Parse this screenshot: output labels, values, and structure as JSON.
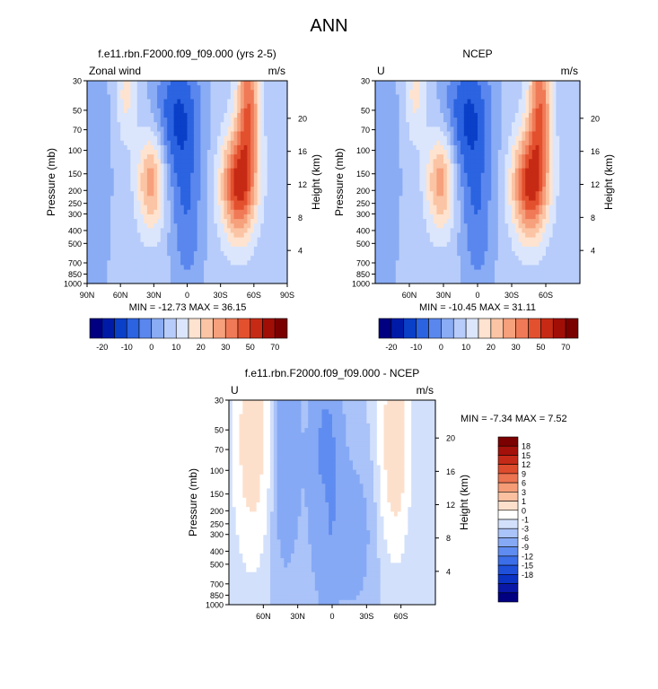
{
  "page": {
    "title": "ANN"
  },
  "colors": {
    "absolute_levels_palette": [
      "#000080",
      "#001aa8",
      "#0a3fc8",
      "#2b63e0",
      "#5a87ee",
      "#8aacf5",
      "#b7ccfa",
      "#dbe6fd",
      "#fde3d0",
      "#fbc4a4",
      "#f6a07c",
      "#f07a57",
      "#e3502e",
      "#c62a14",
      "#a10e06",
      "#7a0000"
    ],
    "difference_levels_palette": [
      "#000080",
      "#0a18a8",
      "#0a32c3",
      "#1e50da",
      "#3b6ee8",
      "#5f8cf0",
      "#86a9f5",
      "#aac3f8",
      "#d2e0fb",
      "#ffffff",
      "#fde0cc",
      "#fbc0a0",
      "#f59c77",
      "#ec7451",
      "#dd4c2d",
      "#c42a17",
      "#a3110a",
      "#7b0000"
    ]
  },
  "chart_data": [
    {
      "type": "heatmap",
      "title": "f.e11.rbn.F2000.f09_f09.000 (yrs 2-5)",
      "left_label": "Zonal wind",
      "units": "m/s",
      "ylabel": "Pressure (mb)",
      "right_label": "Height (km)",
      "x_ticks": [
        "90N",
        "60N",
        "30N",
        "0",
        "30S",
        "60S",
        "90S"
      ],
      "x_tick_values": [
        90,
        60,
        30,
        0,
        -30,
        -60,
        -90
      ],
      "xlim": [
        90,
        -90
      ],
      "y_ticks": [
        "30",
        "50",
        "70",
        "100",
        "150",
        "200",
        "250",
        "300",
        "400",
        "500",
        "700",
        "850",
        "1000"
      ],
      "y_tick_values": [
        30,
        50,
        70,
        100,
        150,
        200,
        250,
        300,
        400,
        500,
        700,
        850,
        1000
      ],
      "ylim": [
        1000,
        30
      ],
      "y_scale": "log",
      "height_ticks": [
        "4",
        "8",
        "12",
        "16",
        "20"
      ],
      "height_tick_values": [
        4,
        8,
        12,
        16,
        20
      ],
      "stats": "MIN = -12.73  MAX =  36.15",
      "min": -12.73,
      "max": 36.15,
      "colorbar": {
        "orientation": "horizontal",
        "levels": [
          -25,
          -20,
          -15,
          -10,
          -5,
          0,
          5,
          10,
          15,
          20,
          25,
          30,
          35,
          50,
          60,
          70
        ],
        "labels": [
          "-20",
          "-10",
          "0",
          "10",
          "20",
          "30",
          "50",
          "70"
        ]
      }
    },
    {
      "type": "heatmap",
      "title": "NCEP",
      "left_label": "U",
      "units": "m/s",
      "ylabel": "Pressure (mb)",
      "right_label": "Height (km)",
      "x_ticks": [
        "60N",
        "30N",
        "0",
        "30S",
        "60S"
      ],
      "x_tick_values": [
        60,
        30,
        0,
        -30,
        -60
      ],
      "xlim": [
        90,
        -90
      ],
      "y_ticks": [
        "30",
        "50",
        "70",
        "100",
        "150",
        "200",
        "250",
        "300",
        "400",
        "500",
        "700",
        "850",
        "1000"
      ],
      "y_tick_values": [
        30,
        50,
        70,
        100,
        150,
        200,
        250,
        300,
        400,
        500,
        700,
        850,
        1000
      ],
      "ylim": [
        1000,
        30
      ],
      "y_scale": "log",
      "height_ticks": [
        "4",
        "8",
        "12",
        "16",
        "20"
      ],
      "height_tick_values": [
        4,
        8,
        12,
        16,
        20
      ],
      "stats": "MIN = -10.45  MAX =  31.11",
      "min": -10.45,
      "max": 31.11,
      "colorbar": {
        "orientation": "horizontal",
        "levels": [
          -25,
          -20,
          -15,
          -10,
          -5,
          0,
          5,
          10,
          15,
          20,
          25,
          30,
          35,
          50,
          60,
          70
        ],
        "labels": [
          "-20",
          "-10",
          "0",
          "10",
          "20",
          "30",
          "50",
          "70"
        ]
      }
    },
    {
      "type": "heatmap",
      "title": "f.e11.rbn.F2000.f09_f09.000 - NCEP",
      "left_label": "U",
      "units": "m/s",
      "ylabel": "Pressure (mb)",
      "right_label": "Height (km)",
      "x_ticks": [
        "60N",
        "30N",
        "0",
        "30S",
        "60S"
      ],
      "x_tick_values": [
        60,
        30,
        0,
        -30,
        -60
      ],
      "xlim": [
        90,
        -90
      ],
      "y_ticks": [
        "30",
        "50",
        "70",
        "100",
        "150",
        "200",
        "250",
        "300",
        "400",
        "500",
        "700",
        "850",
        "1000"
      ],
      "y_tick_values": [
        30,
        50,
        70,
        100,
        150,
        200,
        250,
        300,
        400,
        500,
        700,
        850,
        1000
      ],
      "ylim": [
        1000,
        30
      ],
      "y_scale": "log",
      "height_ticks": [
        "4",
        "8",
        "12",
        "16",
        "20"
      ],
      "height_tick_values": [
        4,
        8,
        12,
        16,
        20
      ],
      "stats": "MIN = -7.34  MAX =  7.52",
      "min": -7.34,
      "max": 7.52,
      "colorbar": {
        "orientation": "vertical",
        "levels": [
          -18,
          -15,
          -12,
          -9,
          -6,
          -3,
          -1,
          0,
          1,
          3,
          6,
          9,
          12,
          15,
          18
        ],
        "labels": [
          "18",
          "15",
          "12",
          "9",
          "6",
          "3",
          "1",
          "0",
          "-1",
          "-3",
          "-6",
          "-9",
          "-12",
          "-15",
          "-18"
        ]
      }
    }
  ]
}
